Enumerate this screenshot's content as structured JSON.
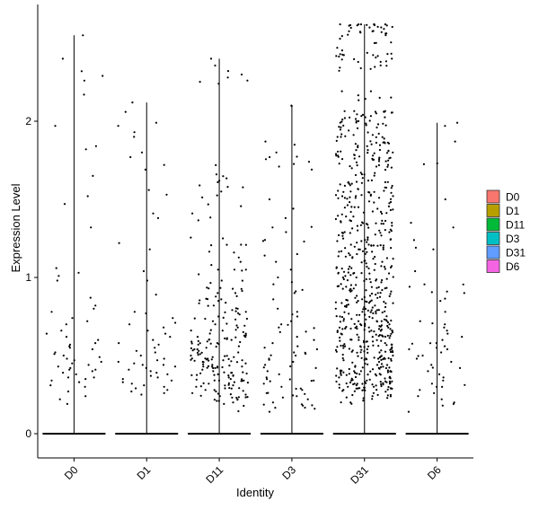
{
  "chart_data": {
    "type": "scatter",
    "subtype": "violin-jitter",
    "xlabel": "Identity",
    "ylabel": "Expression Level",
    "categories": [
      "D0",
      "D1",
      "D11",
      "D3",
      "D31",
      "D6"
    ],
    "yticks": [
      "0",
      "1",
      "2"
    ],
    "ylim": [
      -0.15,
      2.7
    ],
    "legend_position": "right",
    "legend": [
      {
        "label": "D0",
        "color": "#F8766D"
      },
      {
        "label": "D1",
        "color": "#B79F00"
      },
      {
        "label": "D11",
        "color": "#00BA38"
      },
      {
        "label": "D3",
        "color": "#00BFC4"
      },
      {
        "label": "D31",
        "color": "#619CFF"
      },
      {
        "label": "D6",
        "color": "#F564E3"
      }
    ],
    "series": [
      {
        "category": "D0",
        "max": 2.55,
        "n_nonzero": 60,
        "values": [
          2.55,
          2.4,
          2.32,
          2.29,
          2.26,
          2.17,
          1.97,
          1.84,
          1.82,
          1.65,
          1.52,
          1.47,
          1.32,
          1.06,
          1.03,
          1.01,
          0.98,
          0.87,
          0.82,
          0.8,
          0.78,
          0.74,
          0.72,
          0.7,
          0.66,
          0.62,
          0.6,
          0.58,
          0.56,
          0.55,
          0.54,
          0.52,
          0.51,
          0.5,
          0.48,
          0.47,
          0.46,
          0.45,
          0.44,
          0.43,
          0.42,
          0.41,
          0.4,
          0.39,
          0.38,
          0.36,
          0.35,
          0.34,
          0.33,
          0.31,
          0.3,
          0.27,
          0.24,
          0.22,
          0.19,
          0.36,
          0.41,
          0.49,
          0.57,
          0.64
        ]
      },
      {
        "category": "D1",
        "max": 2.12,
        "n_nonzero": 60,
        "values": [
          2.12,
          2.06,
          1.99,
          1.97,
          1.93,
          1.9,
          1.8,
          1.77,
          1.72,
          1.69,
          1.56,
          1.53,
          1.41,
          1.38,
          1.22,
          1.18,
          1.04,
          0.98,
          0.89,
          0.78,
          0.77,
          0.74,
          0.7,
          0.66,
          0.62,
          0.6,
          0.58,
          0.55,
          0.52,
          0.5,
          0.48,
          0.47,
          0.45,
          0.44,
          0.43,
          0.42,
          0.41,
          0.4,
          0.39,
          0.38,
          0.37,
          0.36,
          0.35,
          0.34,
          0.33,
          0.32,
          0.31,
          0.3,
          0.29,
          0.28,
          0.27,
          0.26,
          0.25,
          0.44,
          0.46,
          0.53,
          0.57,
          0.64,
          0.68,
          0.71
        ]
      },
      {
        "category": "D11",
        "max": 2.4,
        "n_nonzero": 220,
        "values": [
          2.4,
          2.28,
          2.24,
          1.66,
          1.61,
          1.58,
          1.55,
          1.41,
          1.25,
          1.21,
          1.16,
          1.1,
          1.08,
          1.05,
          1.02,
          0.98,
          0.93,
          0.9,
          0.88,
          0.85,
          0.82,
          0.8,
          0.78,
          0.75,
          0.72,
          0.7,
          0.68,
          0.66,
          0.65,
          0.64,
          0.63,
          0.62,
          0.61,
          0.6,
          0.59,
          0.58,
          0.57,
          0.56,
          0.55,
          0.54,
          0.53,
          0.52,
          0.51,
          0.5,
          0.49,
          0.48,
          0.47,
          0.46,
          0.45,
          0.44,
          0.43,
          0.42,
          0.41,
          0.4,
          0.39,
          0.38,
          0.37,
          0.36,
          0.35,
          0.34,
          0.33,
          0.32,
          0.31,
          0.3,
          0.29,
          0.28,
          0.27,
          0.26,
          0.25,
          0.24,
          0.23,
          0.22,
          0.21,
          0.2,
          0.19
        ]
      },
      {
        "category": "D3",
        "max": 2.1,
        "n_nonzero": 90,
        "values": [
          2.1,
          1.87,
          1.85,
          1.8,
          1.77,
          1.74,
          1.71,
          1.69,
          1.5,
          1.44,
          1.38,
          1.32,
          1.29,
          1.23,
          1.14,
          1.1,
          1.05,
          1.0,
          0.97,
          0.92,
          0.9,
          0.86,
          0.8,
          0.78,
          0.75,
          0.72,
          0.7,
          0.68,
          0.65,
          0.62,
          0.6,
          0.58,
          0.56,
          0.54,
          0.52,
          0.5,
          0.48,
          0.46,
          0.44,
          0.42,
          0.4,
          0.38,
          0.36,
          0.34,
          0.32,
          0.3,
          0.28,
          0.26,
          0.24,
          0.22,
          0.2,
          0.18,
          0.16,
          0.14
        ]
      },
      {
        "category": "D31",
        "max": 2.62,
        "n_nonzero": 700,
        "values": [
          2.62,
          2.6,
          2.57,
          2.47,
          2.4,
          2.38,
          2.15,
          2.06,
          2.02,
          1.96,
          1.92,
          1.86,
          1.84,
          1.8,
          1.76,
          1.71,
          1.67,
          1.62,
          1.6,
          1.55,
          1.52,
          1.48,
          1.45,
          1.42,
          1.39,
          1.36,
          1.33,
          1.3,
          1.27,
          1.24,
          1.21,
          1.18,
          1.15,
          1.12,
          1.09,
          1.06,
          1.03,
          1.0,
          0.97,
          0.94,
          0.91,
          0.88,
          0.85,
          0.82,
          0.8,
          0.78,
          0.76,
          0.74,
          0.72,
          0.7,
          0.68,
          0.66,
          0.64,
          0.62,
          0.6,
          0.58,
          0.56,
          0.54,
          0.52,
          0.5,
          0.48,
          0.46,
          0.44,
          0.42,
          0.4,
          0.38,
          0.36,
          0.34,
          0.32,
          0.3,
          0.28,
          0.26,
          0.24
        ]
      },
      {
        "category": "D6",
        "max": 1.99,
        "n_nonzero": 60,
        "values": [
          1.99,
          1.97,
          1.87,
          1.73,
          1.5,
          1.35,
          1.32,
          1.19,
          1.18,
          1.04,
          0.91,
          0.9,
          0.85,
          0.78,
          0.72,
          0.7,
          0.68,
          0.66,
          0.64,
          0.62,
          0.6,
          0.58,
          0.56,
          0.54,
          0.52,
          0.5,
          0.48,
          0.46,
          0.44,
          0.42,
          0.4,
          0.38,
          0.36,
          0.34,
          0.32,
          0.3,
          0.28,
          0.26,
          0.24,
          0.22,
          0.2,
          0.19,
          0.18
        ]
      }
    ]
  }
}
